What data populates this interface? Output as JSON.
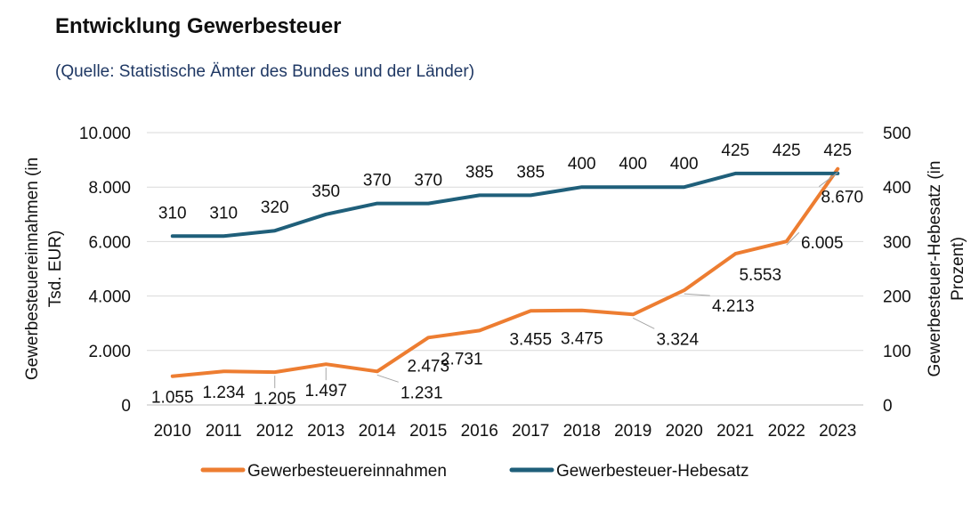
{
  "chart_data": {
    "type": "line",
    "title": "Entwicklung Gewerbesteuer",
    "subtitle": "(Quelle: Statistische Ämter des Bundes und der Länder)",
    "categories": [
      "2010",
      "2011",
      "2012",
      "2013",
      "2014",
      "2015",
      "2016",
      "2017",
      "2018",
      "2019",
      "2020",
      "2021",
      "2022",
      "2023"
    ],
    "y_left": {
      "label_lines": [
        "Gewerbesteuereinnahmen (in",
        "Tsd. EUR)"
      ],
      "range": [
        0,
        10000
      ],
      "ticks": [
        0,
        2000,
        4000,
        6000,
        8000,
        10000
      ],
      "tick_labels": [
        "0",
        "2.000",
        "4.000",
        "6.000",
        "8.000",
        "10.000"
      ]
    },
    "y_right": {
      "label_lines": [
        "Gewerbesteuer-Hebesatz (in",
        "Prozent)"
      ],
      "range": [
        0,
        500
      ],
      "ticks": [
        0,
        100,
        200,
        300,
        400,
        500
      ],
      "tick_labels": [
        "0",
        "100",
        "200",
        "300",
        "400",
        "500"
      ]
    },
    "grid": true,
    "legend_position": "bottom",
    "series": [
      {
        "name": "Gewerbesteuereinnahmen",
        "axis": "left",
        "color": "#ed7d31",
        "values": [
          1055,
          1234,
          1205,
          1497,
          1231,
          2473,
          2731,
          3455,
          3475,
          3324,
          4213,
          5553,
          6005,
          8670
        ],
        "labels": [
          "1.055",
          "1.234",
          "1.205",
          "1.497",
          "1.231",
          "2.473",
          "2.731",
          "3.455",
          "3.475",
          "3.324",
          "4.213",
          "5.553",
          "6.005",
          "8.670"
        ]
      },
      {
        "name": "Gewerbesteuer-Hebesatz",
        "axis": "right",
        "color": "#1f5f7a",
        "values": [
          310,
          310,
          320,
          350,
          370,
          370,
          385,
          385,
          400,
          400,
          400,
          425,
          425,
          425
        ],
        "labels": [
          "310",
          "310",
          "320",
          "350",
          "370",
          "370",
          "385",
          "385",
          "400",
          "400",
          "400",
          "425",
          "425",
          "425"
        ]
      }
    ]
  }
}
